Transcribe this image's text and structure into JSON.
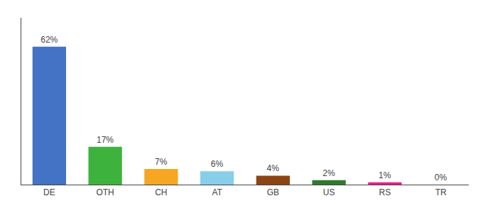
{
  "chart_data": {
    "type": "bar",
    "categories": [
      "DE",
      "OTH",
      "CH",
      "AT",
      "GB",
      "US",
      "RS",
      "TR"
    ],
    "values": [
      62,
      17,
      7,
      6,
      4,
      2,
      1,
      0
    ],
    "value_labels": [
      "62%",
      "17%",
      "7%",
      "6%",
      "4%",
      "2%",
      "1%",
      "0%"
    ],
    "colors": [
      "#4472c4",
      "#3db33d",
      "#f5a623",
      "#87ceeb",
      "#8b4513",
      "#2d7a2d",
      "#e91e8c",
      "#cccccc"
    ],
    "data_labels": true,
    "ylim": [
      0,
      75
    ],
    "grid": false,
    "tick_labels": "x"
  }
}
